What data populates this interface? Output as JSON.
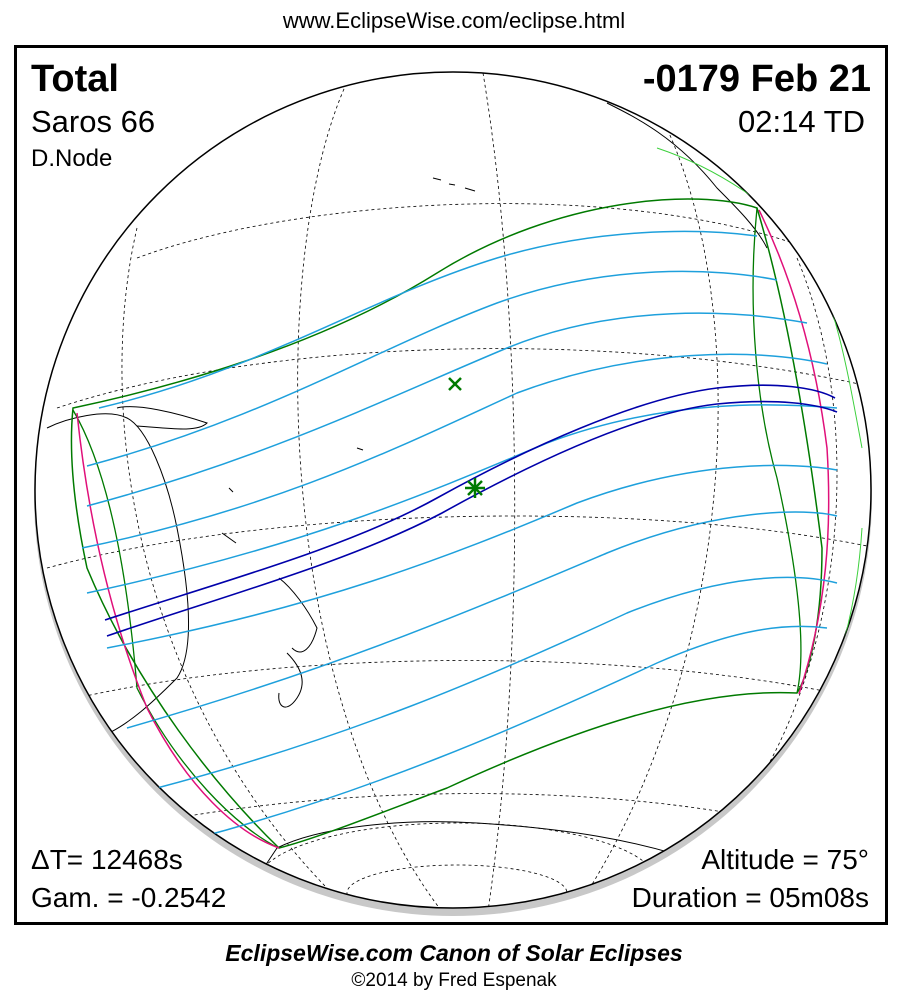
{
  "header": {
    "url": "www.EclipseWise.com/eclipse.html"
  },
  "eclipse": {
    "type": "Total",
    "date": "-0179 Feb 21",
    "saros": "Saros  66",
    "time": "02:14 TD",
    "node": "D.Node",
    "delta_t": "ΔT=  12468s",
    "gamma": "Gam. = -0.2542",
    "altitude": "Altitude = 75°",
    "duration": "Duration = 05m08s"
  },
  "footer": {
    "title": "EclipseWise.com Canon of Solar Eclipses",
    "copyright": "©2014 by Fred Espenak"
  },
  "colors": {
    "umbral_path": "#0000aa",
    "penumbral_lines": "#1ea0dc",
    "penumbral_limits": "#007a00",
    "rise_set_curves": "#e0107a",
    "greatest_eclipse_marker": "#007a00"
  }
}
